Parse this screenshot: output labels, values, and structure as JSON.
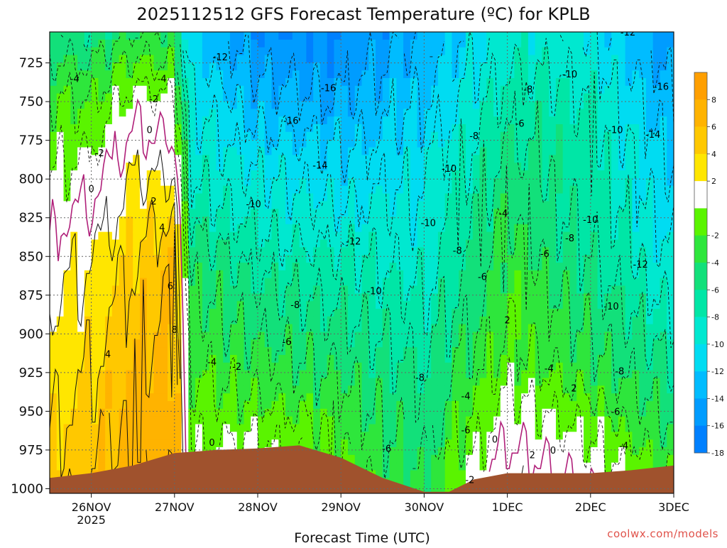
{
  "chart_data": {
    "type": "heatmap",
    "title": "2025112512 GFS Forecast Temperature (ºC) for KPLB",
    "xlabel": "Forecast Time (UTC)",
    "ylabel": "",
    "credit": "coolwx.com/models",
    "x_ticks": [
      {
        "label": "26NOV",
        "sub": "2025"
      },
      {
        "label": "27NOV",
        "sub": ""
      },
      {
        "label": "28NOV",
        "sub": ""
      },
      {
        "label": "29NOV",
        "sub": ""
      },
      {
        "label": "30NOV",
        "sub": ""
      },
      {
        "label": "1DEC",
        "sub": ""
      },
      {
        "label": "2DEC",
        "sub": ""
      },
      {
        "label": "3DEC",
        "sub": ""
      }
    ],
    "y_ticks": [
      "725",
      "750",
      "775",
      "800",
      "825",
      "850",
      "875",
      "900",
      "925",
      "950",
      "975",
      "1000"
    ],
    "ylim": [
      1003,
      705
    ],
    "xlim_days": [
      25.5,
      33.0
    ],
    "colorbar": {
      "ticks": [
        "8",
        "6",
        "4",
        "2",
        "-2",
        "-4",
        "-6",
        "-8",
        "-10",
        "-12",
        "-14",
        "-16",
        "-18"
      ],
      "bands": [
        {
          "lo": 8,
          "hi": 10,
          "color": "#ff9f00"
        },
        {
          "lo": 6,
          "hi": 8,
          "color": "#ffb300"
        },
        {
          "lo": 4,
          "hi": 6,
          "color": "#ffc800"
        },
        {
          "lo": 2,
          "hi": 4,
          "color": "#ffe600"
        },
        {
          "lo": -2,
          "hi": 2,
          "color": "#ffffff"
        },
        {
          "lo": -4,
          "hi": -2,
          "color": "#5af400"
        },
        {
          "lo": -6,
          "hi": -4,
          "color": "#2ee63c"
        },
        {
          "lo": -8,
          "hi": -6,
          "color": "#12e07a"
        },
        {
          "lo": -10,
          "hi": -8,
          "color": "#00e6a6"
        },
        {
          "lo": -12,
          "hi": -10,
          "color": "#00e8d0"
        },
        {
          "lo": -14,
          "hi": -12,
          "color": "#00dcf2"
        },
        {
          "lo": -16,
          "hi": -14,
          "color": "#00bcff"
        },
        {
          "lo": -18,
          "hi": -16,
          "color": "#009cff"
        },
        {
          "lo": -20,
          "hi": -18,
          "color": "#0080ff"
        }
      ]
    },
    "terrain_color": "#a0522d",
    "surface_pressure": [
      [
        25.5,
        993
      ],
      [
        26.0,
        990
      ],
      [
        26.5,
        985
      ],
      [
        27.0,
        977
      ],
      [
        27.5,
        975
      ],
      [
        28.0,
        974
      ],
      [
        28.5,
        972
      ],
      [
        29.0,
        980
      ],
      [
        29.5,
        993
      ],
      [
        30.0,
        1002
      ],
      [
        30.3,
        1002
      ],
      [
        30.6,
        994
      ],
      [
        31.0,
        990
      ],
      [
        31.5,
        990
      ],
      [
        32.0,
        990
      ],
      [
        32.5,
        988
      ],
      [
        33.0,
        985
      ]
    ],
    "temperature_profiles": [
      {
        "day": 25.5,
        "p": [
          1000,
          925,
          850,
          800,
          750,
          705
        ],
        "t": [
          5,
          3,
          1,
          -2,
          -4,
          -7
        ]
      },
      {
        "day": 26.0,
        "p": [
          1000,
          925,
          850,
          800,
          750,
          705
        ],
        "t": [
          6,
          4,
          2,
          -1,
          -4,
          -8
        ]
      },
      {
        "day": 26.5,
        "p": [
          1000,
          925,
          850,
          800,
          750,
          705
        ],
        "t": [
          7,
          6,
          4,
          2,
          -1,
          -6
        ]
      },
      {
        "day": 27.0,
        "p": [
          1000,
          925,
          850,
          800,
          750,
          705
        ],
        "t": [
          8,
          7,
          6,
          2,
          -2,
          -6
        ]
      },
      {
        "day": 27.2,
        "p": [
          1000,
          925,
          850,
          800,
          750,
          705
        ],
        "t": [
          -1,
          -4,
          -7,
          -10,
          -12,
          -14
        ]
      },
      {
        "day": 28.0,
        "p": [
          1000,
          925,
          850,
          800,
          750,
          705
        ],
        "t": [
          0,
          -5,
          -9,
          -12,
          -15,
          -18
        ]
      },
      {
        "day": 29.0,
        "p": [
          1000,
          925,
          850,
          800,
          750,
          705
        ],
        "t": [
          -3,
          -6,
          -10,
          -13,
          -16,
          -18
        ]
      },
      {
        "day": 30.0,
        "p": [
          1000,
          925,
          850,
          800,
          750,
          705
        ],
        "t": [
          -6,
          -8,
          -11,
          -12,
          -14,
          -16
        ]
      },
      {
        "day": 31.0,
        "p": [
          1000,
          925,
          850,
          800,
          750,
          705
        ],
        "t": [
          2,
          -3,
          -5,
          -7,
          -9,
          -11
        ]
      },
      {
        "day": 32.0,
        "p": [
          1000,
          925,
          850,
          800,
          750,
          705
        ],
        "t": [
          0,
          -5,
          -8,
          -9,
          -10,
          -12
        ]
      },
      {
        "day": 33.0,
        "p": [
          1000,
          925,
          850,
          800,
          750,
          705
        ],
        "t": [
          -4,
          -8,
          -12,
          -14,
          -16,
          -18
        ]
      }
    ],
    "contour_labels": [
      {
        "text": "-4",
        "day": 25.8,
        "p": 735
      },
      {
        "text": "-2",
        "day": 26.1,
        "p": 783
      },
      {
        "text": "0",
        "day": 26.0,
        "p": 806
      },
      {
        "text": "0",
        "day": 26.7,
        "p": 768
      },
      {
        "text": "-4",
        "day": 26.85,
        "p": 735
      },
      {
        "text": "-2",
        "day": 26.75,
        "p": 748
      },
      {
        "text": "2",
        "day": 26.75,
        "p": 814
      },
      {
        "text": "4",
        "day": 26.85,
        "p": 831
      },
      {
        "text": "6",
        "day": 26.95,
        "p": 869
      },
      {
        "text": "8",
        "day": 27.0,
        "p": 897
      },
      {
        "text": "4",
        "day": 26.2,
        "p": 913
      },
      {
        "text": "-12",
        "day": 27.55,
        "p": 721
      },
      {
        "text": "-16",
        "day": 28.4,
        "p": 762
      },
      {
        "text": "-16",
        "day": 28.85,
        "p": 741
      },
      {
        "text": "-14",
        "day": 28.75,
        "p": 791
      },
      {
        "text": "-10",
        "day": 27.95,
        "p": 816
      },
      {
        "text": "-12",
        "day": 29.15,
        "p": 840
      },
      {
        "text": "-10",
        "day": 29.4,
        "p": 872
      },
      {
        "text": "-8",
        "day": 28.45,
        "p": 881
      },
      {
        "text": "-6",
        "day": 28.35,
        "p": 905
      },
      {
        "text": "-4",
        "day": 27.45,
        "p": 918
      },
      {
        "text": "-2",
        "day": 27.75,
        "p": 921
      },
      {
        "text": "0",
        "day": 27.45,
        "p": 970
      },
      {
        "text": "-8",
        "day": 29.95,
        "p": 928
      },
      {
        "text": "-6",
        "day": 29.55,
        "p": 974
      },
      {
        "text": "-10",
        "day": 30.05,
        "p": 828
      },
      {
        "text": "-10",
        "day": 30.3,
        "p": 793
      },
      {
        "text": "-8",
        "day": 30.6,
        "p": 772
      },
      {
        "text": "-8",
        "day": 30.4,
        "p": 846
      },
      {
        "text": "-6",
        "day": 30.7,
        "p": 863
      },
      {
        "text": "-4",
        "day": 30.95,
        "p": 822
      },
      {
        "text": "-6",
        "day": 30.5,
        "p": 962
      },
      {
        "text": "-4",
        "day": 30.5,
        "p": 940
      },
      {
        "text": "-2",
        "day": 30.55,
        "p": 994
      },
      {
        "text": "0",
        "day": 30.85,
        "p": 968
      },
      {
        "text": "2",
        "day": 31.0,
        "p": 891
      },
      {
        "text": "2",
        "day": 31.3,
        "p": 978
      },
      {
        "text": "0",
        "day": 31.55,
        "p": 975
      },
      {
        "text": "-8",
        "day": 31.25,
        "p": 742
      },
      {
        "text": "-6",
        "day": 31.15,
        "p": 764
      },
      {
        "text": "-10",
        "day": 31.75,
        "p": 732
      },
      {
        "text": "-6",
        "day": 31.45,
        "p": 848
      },
      {
        "text": "-8",
        "day": 31.75,
        "p": 838
      },
      {
        "text": "-4",
        "day": 31.5,
        "p": 922
      },
      {
        "text": "2",
        "day": 31.8,
        "p": 935
      },
      {
        "text": "-10",
        "day": 32.0,
        "p": 826
      },
      {
        "text": "-10",
        "day": 32.3,
        "p": 768
      },
      {
        "text": "-10",
        "day": 32.25,
        "p": 882
      },
      {
        "text": "-8",
        "day": 32.35,
        "p": 924
      },
      {
        "text": "-6",
        "day": 32.3,
        "p": 950
      },
      {
        "text": "-4",
        "day": 32.4,
        "p": 972
      },
      {
        "text": "-12",
        "day": 32.45,
        "p": 705
      },
      {
        "text": "-12",
        "day": 32.6,
        "p": 855
      },
      {
        "text": "-14",
        "day": 32.75,
        "p": 771
      },
      {
        "text": "-16",
        "day": 32.85,
        "p": 740
      }
    ]
  }
}
